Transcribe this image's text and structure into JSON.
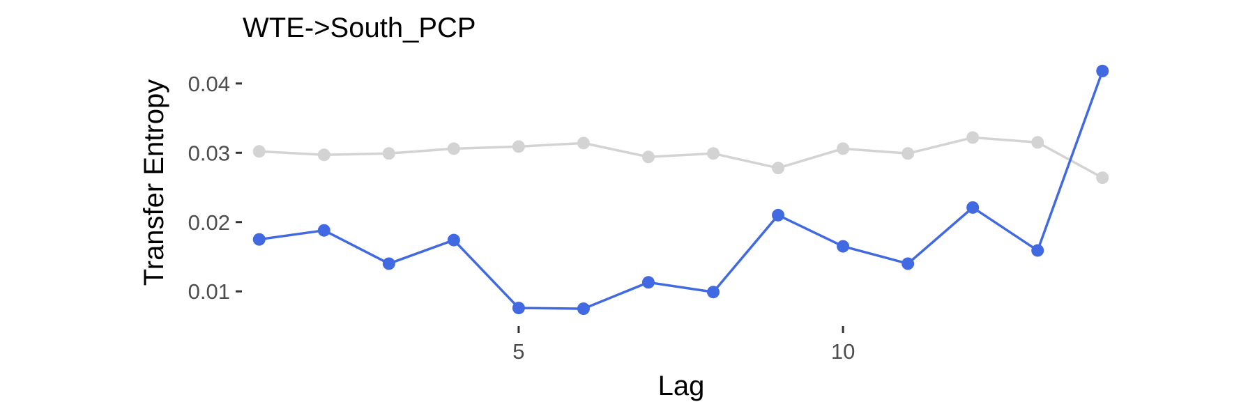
{
  "chart_data": {
    "type": "line",
    "title": "WTE->South_PCP",
    "xlabel": "Lag",
    "ylabel": "Transfer Entropy",
    "xlim": [
      0.82,
      14.18
    ],
    "ylim": [
      0.0058,
      0.0432
    ],
    "xticks": [
      5,
      10
    ],
    "yticks": [
      0.01,
      0.02,
      0.03,
      0.04
    ],
    "xtick_labels": [
      "5",
      "10"
    ],
    "ytick_labels": [
      "0.01",
      "0.02",
      "0.03",
      "0.04"
    ],
    "grid": false,
    "legend": false,
    "x": [
      1,
      2,
      3,
      4,
      5,
      6,
      7,
      8,
      9,
      10,
      11,
      12,
      13,
      14
    ],
    "series": [
      {
        "color": "#d3d3d3",
        "values": [
          0.0302,
          0.0297,
          0.0299,
          0.0306,
          0.0309,
          0.0314,
          0.0294,
          0.0299,
          0.0278,
          0.0306,
          0.0299,
          0.0322,
          0.0315,
          0.0264
        ]
      },
      {
        "color": "#4169e1",
        "values": [
          0.0175,
          0.0188,
          0.014,
          0.0174,
          0.0076,
          0.0075,
          0.0113,
          0.0099,
          0.021,
          0.0165,
          0.014,
          0.0221,
          0.0159,
          0.0418
        ]
      }
    ]
  }
}
